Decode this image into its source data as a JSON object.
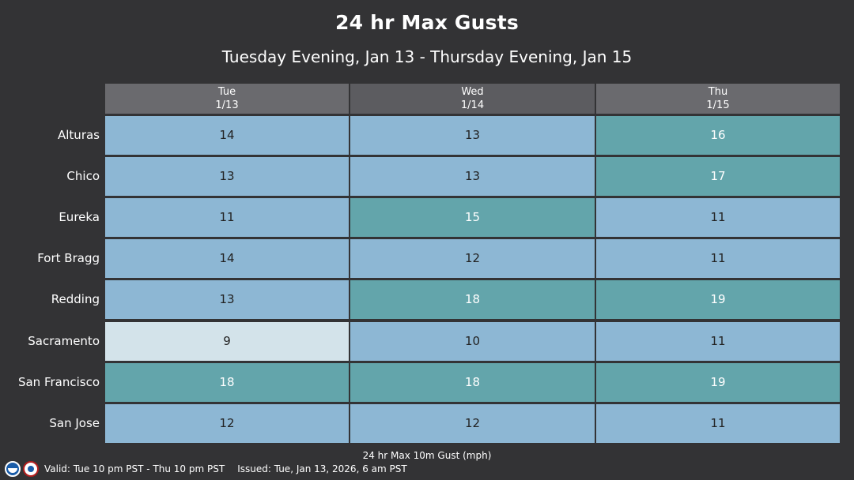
{
  "title": "24 hr Max Gusts",
  "subtitle": "Tuesday Evening, Jan 13 - Thursday Evening, Jan 15",
  "legend_title": "24 hr Max 10m Gust (mph)",
  "footer": {
    "valid": "Valid: Tue 10 pm PST - Thu 10 pm PST",
    "issued": "Issued: Tue, Jan 13, 2026, 6 am PST"
  },
  "icons": {
    "left_logo": "noaa-logo-icon",
    "right_logo": "nws-logo-icon"
  },
  "colors": {
    "background": "#333335",
    "header": "#6a6a6e",
    "low": "#d3e3ea",
    "mid": "#8db7d4",
    "high": "#63a5ab",
    "text_dark": "#222222",
    "text_light": "#ffffff"
  },
  "chart_data": {
    "type": "table",
    "columns": [
      {
        "day": "Tue",
        "date": "1/13"
      },
      {
        "day": "Wed",
        "date": "1/14"
      },
      {
        "day": "Thu",
        "date": "1/15"
      }
    ],
    "rows": [
      {
        "location": "Alturas",
        "values": [
          14,
          13,
          16
        ]
      },
      {
        "location": "Chico",
        "values": [
          13,
          13,
          17
        ]
      },
      {
        "location": "Eureka",
        "values": [
          11,
          15,
          11
        ]
      },
      {
        "location": "Fort Bragg",
        "values": [
          14,
          12,
          11
        ]
      },
      {
        "location": "Redding",
        "values": [
          13,
          18,
          19
        ]
      },
      {
        "location": "Sacramento",
        "values": [
          9,
          10,
          11
        ]
      },
      {
        "location": "San Francisco",
        "values": [
          18,
          18,
          19
        ]
      },
      {
        "location": "San Jose",
        "values": [
          12,
          12,
          11
        ]
      }
    ]
  }
}
